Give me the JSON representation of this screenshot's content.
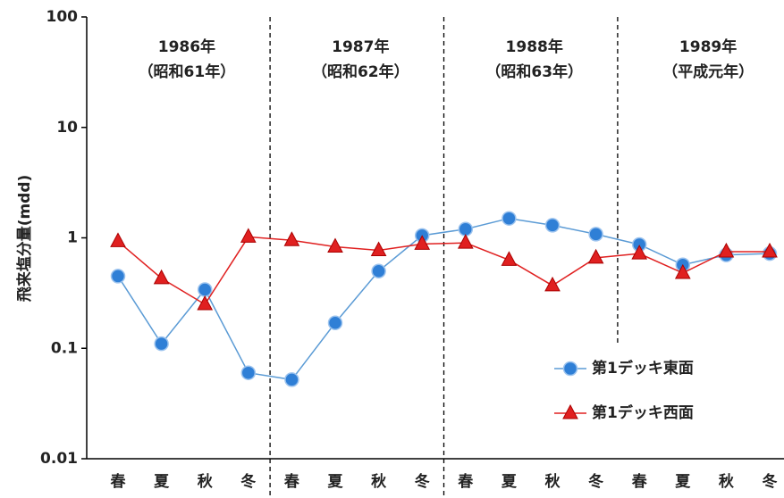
{
  "chart_data": {
    "type": "line",
    "y_label": "飛来塩分量(mdd)",
    "categories": [
      "春",
      "夏",
      "秋",
      "冬",
      "春",
      "夏",
      "秋",
      "冬",
      "春",
      "夏",
      "秋",
      "冬",
      "春",
      "夏",
      "秋",
      "冬"
    ],
    "periods": [
      {
        "year": "1986年",
        "era": "（昭和61年）"
      },
      {
        "year": "1987年",
        "era": "（昭和62年）"
      },
      {
        "year": "1988年",
        "era": "（昭和63年）"
      },
      {
        "year": "1989年",
        "era": "（平成元年）"
      }
    ],
    "series": [
      {
        "name": "第1デッキ東面",
        "color": "#2f7fd6",
        "line_color": "#5b9bd5",
        "marker": "circle",
        "values": [
          0.45,
          0.11,
          0.34,
          0.06,
          0.052,
          0.17,
          0.5,
          1.05,
          1.2,
          1.5,
          1.3,
          1.08,
          0.87,
          0.57,
          0.7,
          0.72
        ]
      },
      {
        "name": "第1デッキ西面",
        "color": "#e02020",
        "line_color": "#e02020",
        "marker": "triangle",
        "values": [
          0.93,
          0.43,
          0.25,
          1.02,
          0.95,
          0.83,
          0.77,
          0.88,
          0.9,
          0.63,
          0.37,
          0.66,
          0.72,
          0.48,
          0.75,
          0.75
        ]
      }
    ],
    "yscale": "log",
    "ylim": [
      0.01,
      100
    ],
    "yticks": [
      0.01,
      0.1,
      1,
      10,
      100
    ],
    "grid": false,
    "legend": "lower right"
  }
}
